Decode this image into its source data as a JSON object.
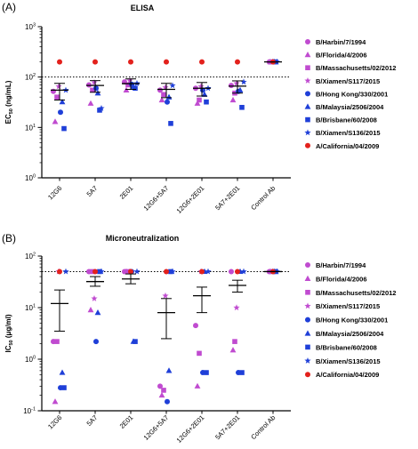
{
  "colors": {
    "purple": "#c04bd0",
    "blue": "#1f3fd8",
    "red": "#e3211c",
    "black": "#000000"
  },
  "legend": [
    {
      "label": "B/Harbin/7/1994",
      "color": "#c04bd0",
      "marker": "circle"
    },
    {
      "label": "B/Florida/4/2006",
      "color": "#c04bd0",
      "marker": "triangle"
    },
    {
      "label": "B/Massachusetts/02/2012",
      "color": "#c04bd0",
      "marker": "square"
    },
    {
      "label": "B/Xiamen/S117/2015",
      "color": "#c04bd0",
      "marker": "star"
    },
    {
      "label": "B/Hong Kong/330/2001",
      "color": "#1f3fd8",
      "marker": "circle"
    },
    {
      "label": "B/Malaysia/2506/2004",
      "color": "#1f3fd8",
      "marker": "triangle"
    },
    {
      "label": "B/Brisbane/60/2008",
      "color": "#1f3fd8",
      "marker": "square"
    },
    {
      "label": "B/Xiamen/S136/2015",
      "color": "#1f3fd8",
      "marker": "star"
    },
    {
      "label": "A/California/04/2009",
      "color": "#e3211c",
      "marker": "circle"
    }
  ],
  "chart_data": [
    {
      "panel_label": "(A)",
      "type": "scatter",
      "title": "ELISA",
      "ylabel_main": "EC",
      "ylabel_sub": "50",
      "ylabel_unit": " (ng/mL)",
      "yscale": "log",
      "ylim": [
        1,
        1000
      ],
      "yticks": [
        {
          "value": 1,
          "base": "10",
          "exp": "0"
        },
        {
          "value": 10,
          "base": "10",
          "exp": "1"
        },
        {
          "value": 100,
          "base": "10",
          "exp": "2"
        },
        {
          "value": 1000,
          "base": "10",
          "exp": "3"
        }
      ],
      "reference_line": 100,
      "categories": [
        "12G6",
        "5A7",
        "2E01",
        "12G6+5A7",
        "12G6+2E01",
        "5A7+2E01",
        "Control Ab"
      ],
      "mean_sd": [
        {
          "mean": 55,
          "low": 35,
          "high": 75
        },
        {
          "mean": 68,
          "low": 50,
          "high": 85
        },
        {
          "mean": 74,
          "low": 57,
          "high": 92
        },
        {
          "mean": 57,
          "low": 39,
          "high": 75
        },
        {
          "mean": 60,
          "low": 42,
          "high": 78
        },
        {
          "mean": 66,
          "low": 48,
          "high": 84
        },
        {
          "mean": 200,
          "low": 200,
          "high": 200
        }
      ],
      "series": [
        {
          "name": "B/Harbin/7/1994",
          "values": [
            52,
            70,
            80,
            55,
            60,
            68,
            200
          ]
        },
        {
          "name": "B/Florida/4/2006",
          "values": [
            13,
            30,
            55,
            35,
            30,
            35,
            200
          ]
        },
        {
          "name": "B/Massachusetts/02/2012",
          "values": [
            40,
            55,
            70,
            45,
            35,
            48,
            200
          ]
        },
        {
          "name": "B/Xiamen/S117/2015",
          "values": [
            65,
            78,
            85,
            62,
            65,
            75,
            200
          ]
        },
        {
          "name": "B/Hong Kong/330/2001",
          "values": [
            20,
            60,
            72,
            32,
            55,
            52,
            200
          ]
        },
        {
          "name": "B/Malaysia/2506/2004",
          "values": [
            32,
            48,
            65,
            40,
            45,
            55,
            200
          ]
        },
        {
          "name": "B/Brisbane/60/2008",
          "values": [
            9.5,
            22,
            60,
            12,
            32,
            25,
            200
          ]
        },
        {
          "name": "B/Xiamen/S136/2015",
          "values": [
            55,
            24,
            75,
            68,
            60,
            80,
            200
          ]
        },
        {
          "name": "A/California/04/2009",
          "values": [
            200,
            200,
            200,
            200,
            200,
            200,
            200
          ]
        }
      ]
    },
    {
      "panel_label": "(B)",
      "type": "scatter",
      "title": "Microneutralization",
      "ylabel_main": "IC",
      "ylabel_sub": "50",
      "ylabel_unit": " (μg/ml)",
      "yscale": "log",
      "ylim": [
        0.1,
        100
      ],
      "yticks": [
        {
          "value": 0.1,
          "base": "10",
          "exp": "-1"
        },
        {
          "value": 1,
          "base": "10",
          "exp": "0"
        },
        {
          "value": 10,
          "base": "10",
          "exp": "1"
        },
        {
          "value": 100,
          "base": "10",
          "exp": "2"
        }
      ],
      "reference_line": 50,
      "categories": [
        "12G6",
        "5A7",
        "2E01",
        "12G6+5A7",
        "12G6+2E01",
        "5A7+2E01",
        "Control Ab"
      ],
      "mean_sd": [
        {
          "mean": 12,
          "low": 3.5,
          "high": 22
        },
        {
          "mean": 32,
          "low": 26,
          "high": 40
        },
        {
          "mean": 36,
          "low": 29,
          "high": 45
        },
        {
          "mean": 8,
          "low": 2.5,
          "high": 15
        },
        {
          "mean": 17,
          "low": 8,
          "high": 25
        },
        {
          "mean": 27,
          "low": 20,
          "high": 34
        },
        {
          "mean": 50,
          "low": 50,
          "high": 50
        }
      ],
      "series": [
        {
          "name": "B/Harbin/7/1994",
          "values": [
            2.2,
            50,
            50,
            0.3,
            4.5,
            50,
            50
          ]
        },
        {
          "name": "B/Florida/4/2006",
          "values": [
            0.15,
            9,
            50,
            0.2,
            0.3,
            1.5,
            50
          ]
        },
        {
          "name": "B/Massachusetts/02/2012",
          "values": [
            2.2,
            50,
            50,
            0.25,
            1.3,
            2.2,
            50
          ]
        },
        {
          "name": "B/Xiamen/S117/2015",
          "values": [
            50,
            15,
            50,
            17,
            50,
            10,
            50
          ]
        },
        {
          "name": "B/Hong Kong/330/2001",
          "values": [
            0.28,
            2.2,
            50,
            0.15,
            0.55,
            0.55,
            50
          ]
        },
        {
          "name": "B/Malaysia/2506/2004",
          "values": [
            0.55,
            8,
            2.2,
            0.6,
            50,
            50,
            50
          ]
        },
        {
          "name": "B/Brisbane/60/2008",
          "values": [
            0.28,
            50,
            2.2,
            50,
            0.55,
            0.55,
            50
          ]
        },
        {
          "name": "B/Xiamen/S136/2015",
          "values": [
            50,
            50,
            50,
            50,
            50,
            50,
            50
          ]
        },
        {
          "name": "A/California/04/2009",
          "values": [
            50,
            50,
            50,
            50,
            50,
            50,
            50
          ]
        }
      ]
    }
  ]
}
